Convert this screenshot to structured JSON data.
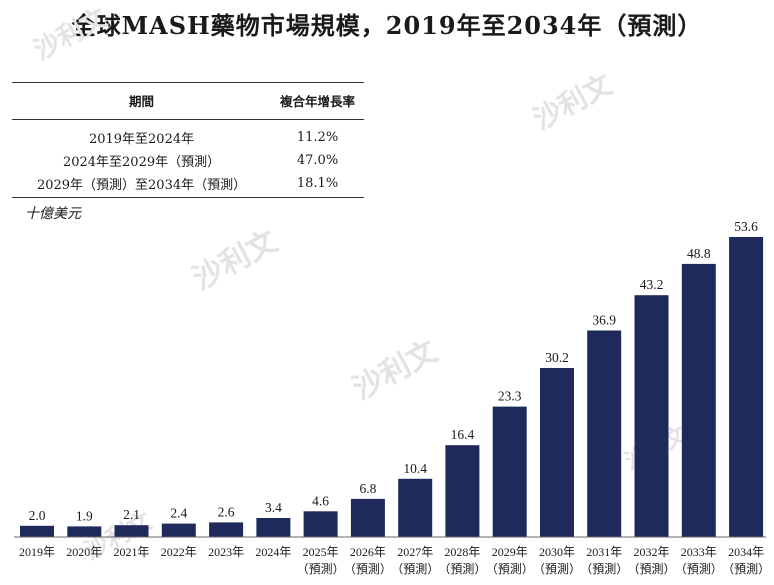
{
  "title": "全球MASH藥物市場規模，2019年至2034年（預測）",
  "cagr_table": {
    "header": [
      "期間",
      "複合年增長率"
    ],
    "rows": [
      {
        "period": "2019年至2024年",
        "rate": "11.2%"
      },
      {
        "period": "2024年至2029年（預測）",
        "rate": "47.0%"
      },
      {
        "period": "2029年（預測）至2034年（預測）",
        "rate": "18.1%"
      }
    ]
  },
  "unit": "十億美元",
  "watermark": "沙利文",
  "colors": {
    "bar": "#1f2a5c"
  },
  "chart_data": {
    "type": "bar",
    "title": "全球MASH藥物市場規模，2019年至2034年（預測）",
    "ylabel": "十億美元",
    "categories": [
      "2019年",
      "2020年",
      "2021年",
      "2022年",
      "2023年",
      "2024年",
      "2025年",
      "2026年",
      "2027年",
      "2028年",
      "2029年",
      "2030年",
      "2031年",
      "2032年",
      "2033年",
      "2034年"
    ],
    "forecast_note": "（預測）",
    "forecast_start_index": 6,
    "values": [
      2.0,
      1.9,
      2.1,
      2.4,
      2.6,
      3.4,
      4.6,
      6.8,
      10.4,
      16.4,
      23.3,
      30.2,
      36.9,
      43.2,
      48.8,
      53.6
    ],
    "value_labels": [
      "2.0",
      "1.9",
      "2.1",
      "2.4",
      "2.6",
      "3.4",
      "4.6",
      "6.8",
      "10.4",
      "16.4",
      "23.3",
      "30.2",
      "36.9",
      "43.2",
      "48.8",
      "53.6"
    ],
    "ylim": [
      0,
      53.6
    ],
    "grid": false,
    "legend": "none"
  }
}
